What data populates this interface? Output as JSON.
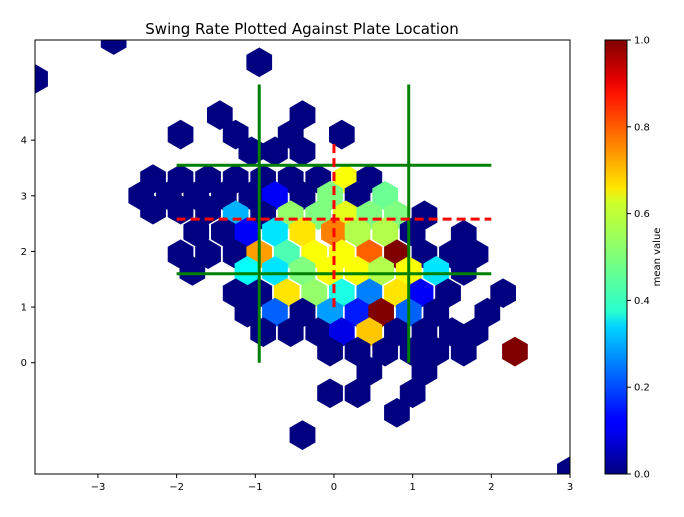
{
  "chart_data": {
    "type": "hexbin",
    "title": "Swing Rate Plotted Against Plate Location",
    "xlabel": "",
    "ylabel": "",
    "xlim": [
      -3.8,
      3.0
    ],
    "ylim": [
      -2.0,
      5.8
    ],
    "xticks": [
      -3,
      -2,
      -1,
      0,
      1,
      2,
      3
    ],
    "yticks": [
      0,
      1,
      2,
      3,
      4
    ],
    "colormap": "jet",
    "colorbar": {
      "label": "mean value",
      "range": [
        0.0,
        1.0
      ],
      "ticks": [
        "0.0",
        "0.2",
        "0.4",
        "0.6",
        "0.8",
        "1.0"
      ]
    },
    "strike_zone_lines": {
      "color": "#008000",
      "vertical_x": [
        -0.95,
        0.95
      ],
      "vertical_y_range": [
        0.0,
        5.0
      ],
      "horizontal_y": [
        1.6,
        3.55
      ],
      "horizontal_x_range": [
        -2.0,
        2.0
      ]
    },
    "center_lines": {
      "color": "#ff0000",
      "vertical_x": 0.0,
      "vertical_y_range": [
        1.0,
        4.0
      ],
      "horizontal_y": 2.58,
      "horizontal_x_range": [
        -2.0,
        2.0
      ]
    },
    "hexes": [
      {
        "x": -2.8,
        "y": 5.8,
        "value": 0.0
      },
      {
        "x": -3.8,
        "y": 5.1,
        "value": 0.0
      },
      {
        "x": -0.95,
        "y": 5.4,
        "value": 0.0
      },
      {
        "x": -1.45,
        "y": 4.45,
        "value": 0.0
      },
      {
        "x": -0.4,
        "y": 4.45,
        "value": 0.0
      },
      {
        "x": -1.95,
        "y": 4.1,
        "value": 0.0
      },
      {
        "x": -1.25,
        "y": 4.1,
        "value": 0.0
      },
      {
        "x": -0.55,
        "y": 4.1,
        "value": 0.0
      },
      {
        "x": 0.1,
        "y": 4.1,
        "value": 0.0
      },
      {
        "x": -1.05,
        "y": 3.8,
        "value": 0.0
      },
      {
        "x": -0.75,
        "y": 3.8,
        "value": 0.0
      },
      {
        "x": -0.4,
        "y": 3.8,
        "value": 0.0
      },
      {
        "x": -2.3,
        "y": 3.3,
        "value": 0.0
      },
      {
        "x": -1.95,
        "y": 3.3,
        "value": 0.0
      },
      {
        "x": -1.6,
        "y": 3.3,
        "value": 0.0
      },
      {
        "x": -1.25,
        "y": 3.3,
        "value": 0.0
      },
      {
        "x": -0.9,
        "y": 3.3,
        "value": 0.0
      },
      {
        "x": -0.55,
        "y": 3.3,
        "value": 0.0
      },
      {
        "x": -0.2,
        "y": 3.3,
        "value": 0.0
      },
      {
        "x": 0.15,
        "y": 3.3,
        "value": 0.62
      },
      {
        "x": 0.45,
        "y": 3.3,
        "value": 0.0
      },
      {
        "x": -2.45,
        "y": 3.0,
        "value": 0.0
      },
      {
        "x": -2.1,
        "y": 3.0,
        "value": 0.0
      },
      {
        "x": -1.75,
        "y": 3.0,
        "value": 0.0
      },
      {
        "x": -1.4,
        "y": 3.0,
        "value": 0.0
      },
      {
        "x": -1.05,
        "y": 3.0,
        "value": 0.0
      },
      {
        "x": -0.75,
        "y": 3.0,
        "value": 0.12
      },
      {
        "x": -0.4,
        "y": 3.0,
        "value": 0.0
      },
      {
        "x": -0.05,
        "y": 3.0,
        "value": 0.5
      },
      {
        "x": 0.3,
        "y": 3.0,
        "value": 0.0
      },
      {
        "x": 0.65,
        "y": 3.0,
        "value": 0.48
      },
      {
        "x": -2.3,
        "y": 2.75,
        "value": 0.0
      },
      {
        "x": -1.95,
        "y": 2.75,
        "value": 0.0
      },
      {
        "x": -1.6,
        "y": 2.75,
        "value": 0.0
      },
      {
        "x": -1.25,
        "y": 2.65,
        "value": 0.3
      },
      {
        "x": -0.9,
        "y": 2.65,
        "value": 0.0
      },
      {
        "x": -0.55,
        "y": 2.65,
        "value": 0.52
      },
      {
        "x": -0.2,
        "y": 2.65,
        "value": 0.5
      },
      {
        "x": 0.15,
        "y": 2.65,
        "value": 0.6
      },
      {
        "x": 0.45,
        "y": 2.65,
        "value": 0.5
      },
      {
        "x": 0.8,
        "y": 2.65,
        "value": 0.5
      },
      {
        "x": 1.15,
        "y": 2.65,
        "value": 0.0
      },
      {
        "x": -1.75,
        "y": 2.35,
        "value": 0.0
      },
      {
        "x": -1.4,
        "y": 2.35,
        "value": 0.0
      },
      {
        "x": -1.1,
        "y": 2.35,
        "value": 0.12
      },
      {
        "x": -0.75,
        "y": 2.35,
        "value": 0.35
      },
      {
        "x": -0.4,
        "y": 2.35,
        "value": 0.65
      },
      {
        "x": 0.0,
        "y": 2.35,
        "value": 0.75
      },
      {
        "x": 0.3,
        "y": 2.35,
        "value": 0.55
      },
      {
        "x": 0.65,
        "y": 2.35,
        "value": 0.55
      },
      {
        "x": 1.0,
        "y": 2.35,
        "value": 0.0
      },
      {
        "x": 1.65,
        "y": 2.3,
        "value": 0.0
      },
      {
        "x": -1.95,
        "y": 1.95,
        "value": 0.0
      },
      {
        "x": -1.6,
        "y": 1.95,
        "value": 0.0
      },
      {
        "x": -1.25,
        "y": 1.95,
        "value": 0.0
      },
      {
        "x": -0.95,
        "y": 1.95,
        "value": 0.72
      },
      {
        "x": -0.6,
        "y": 1.95,
        "value": 0.45
      },
      {
        "x": -0.25,
        "y": 1.95,
        "value": 0.62
      },
      {
        "x": 0.1,
        "y": 1.95,
        "value": 0.62
      },
      {
        "x": 0.45,
        "y": 1.95,
        "value": 0.78
      },
      {
        "x": 0.8,
        "y": 1.95,
        "value": 1.0
      },
      {
        "x": 1.15,
        "y": 1.95,
        "value": 0.0
      },
      {
        "x": 1.5,
        "y": 1.95,
        "value": 0.0
      },
      {
        "x": 1.8,
        "y": 1.95,
        "value": 0.0
      },
      {
        "x": -1.8,
        "y": 1.65,
        "value": 0.0
      },
      {
        "x": -1.1,
        "y": 1.65,
        "value": 0.38
      },
      {
        "x": -0.75,
        "y": 1.65,
        "value": 0.35
      },
      {
        "x": -0.4,
        "y": 1.65,
        "value": 0.5
      },
      {
        "x": -0.05,
        "y": 1.65,
        "value": 0.62
      },
      {
        "x": 0.3,
        "y": 1.65,
        "value": 0.62
      },
      {
        "x": 0.6,
        "y": 1.65,
        "value": 0.55
      },
      {
        "x": 0.95,
        "y": 1.65,
        "value": 0.62
      },
      {
        "x": 1.3,
        "y": 1.65,
        "value": 0.35
      },
      {
        "x": 1.65,
        "y": 1.65,
        "value": 0.0
      },
      {
        "x": -1.25,
        "y": 1.25,
        "value": 0.0
      },
      {
        "x": -0.95,
        "y": 1.25,
        "value": 0.0
      },
      {
        "x": -0.6,
        "y": 1.25,
        "value": 0.65
      },
      {
        "x": -0.25,
        "y": 1.25,
        "value": 0.52
      },
      {
        "x": 0.1,
        "y": 1.25,
        "value": 0.4
      },
      {
        "x": 0.45,
        "y": 1.25,
        "value": 0.25
      },
      {
        "x": 0.8,
        "y": 1.25,
        "value": 0.65
      },
      {
        "x": 1.1,
        "y": 1.25,
        "value": 0.12
      },
      {
        "x": 1.45,
        "y": 1.25,
        "value": 0.0
      },
      {
        "x": 2.15,
        "y": 1.25,
        "value": 0.0
      },
      {
        "x": -1.1,
        "y": 0.9,
        "value": 0.0
      },
      {
        "x": -0.75,
        "y": 0.9,
        "value": 0.22
      },
      {
        "x": -0.4,
        "y": 0.9,
        "value": 0.0
      },
      {
        "x": -0.05,
        "y": 0.9,
        "value": 0.28
      },
      {
        "x": 0.3,
        "y": 0.9,
        "value": 0.15
      },
      {
        "x": 0.6,
        "y": 0.9,
        "value": 1.0
      },
      {
        "x": 0.95,
        "y": 0.9,
        "value": 0.22
      },
      {
        "x": 1.3,
        "y": 0.9,
        "value": 0.0
      },
      {
        "x": 1.95,
        "y": 0.9,
        "value": 0.0
      },
      {
        "x": -0.9,
        "y": 0.55,
        "value": 0.0
      },
      {
        "x": -0.55,
        "y": 0.55,
        "value": 0.0
      },
      {
        "x": -0.2,
        "y": 0.55,
        "value": 0.0
      },
      {
        "x": 0.1,
        "y": 0.55,
        "value": 0.1
      },
      {
        "x": 0.45,
        "y": 0.55,
        "value": 0.68
      },
      {
        "x": 0.8,
        "y": 0.55,
        "value": 0.0
      },
      {
        "x": 1.15,
        "y": 0.55,
        "value": 0.0
      },
      {
        "x": 1.5,
        "y": 0.55,
        "value": 0.0
      },
      {
        "x": 1.8,
        "y": 0.55,
        "value": 0.0
      },
      {
        "x": -0.05,
        "y": 0.2,
        "value": 0.0
      },
      {
        "x": 0.3,
        "y": 0.2,
        "value": 0.0
      },
      {
        "x": 0.65,
        "y": 0.2,
        "value": 0.0
      },
      {
        "x": 1.0,
        "y": 0.2,
        "value": 0.0
      },
      {
        "x": 1.3,
        "y": 0.2,
        "value": 0.0
      },
      {
        "x": 1.65,
        "y": 0.2,
        "value": 0.0
      },
      {
        "x": 2.3,
        "y": 0.2,
        "value": 1.0
      },
      {
        "x": 0.45,
        "y": -0.15,
        "value": 0.0
      },
      {
        "x": 1.15,
        "y": -0.15,
        "value": 0.0
      },
      {
        "x": -0.05,
        "y": -0.55,
        "value": 0.0
      },
      {
        "x": 0.3,
        "y": -0.55,
        "value": 0.0
      },
      {
        "x": 1.0,
        "y": -0.55,
        "value": 0.0
      },
      {
        "x": 0.8,
        "y": -0.9,
        "value": 0.0
      },
      {
        "x": -0.4,
        "y": -1.3,
        "value": 0.0
      },
      {
        "x": 3.0,
        "y": -1.95,
        "value": 0.0
      }
    ]
  }
}
